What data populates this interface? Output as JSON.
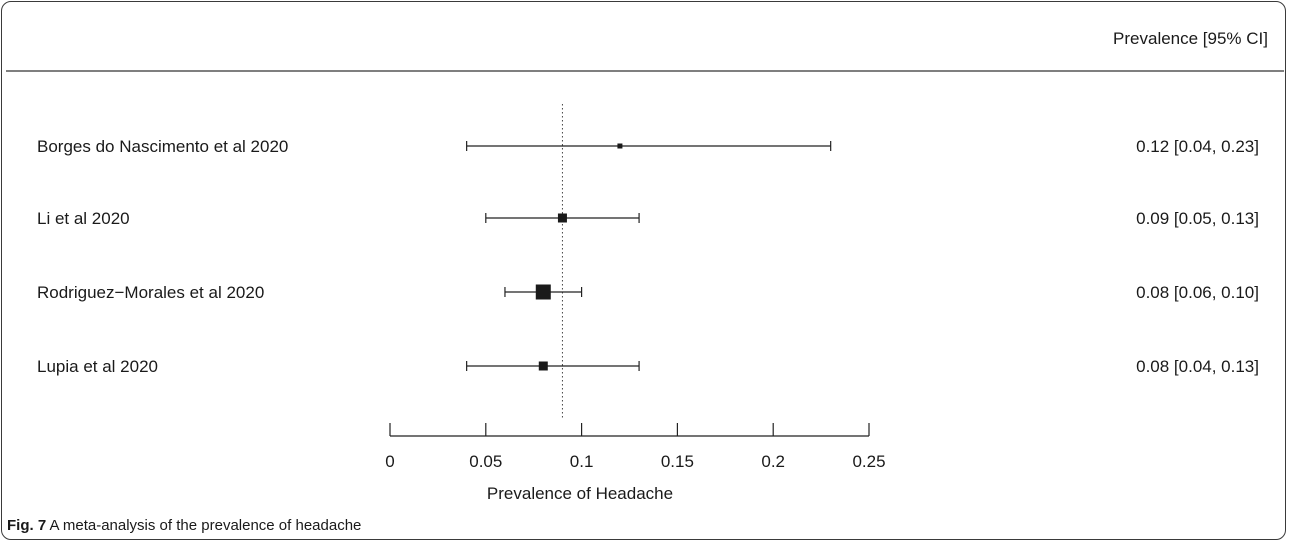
{
  "chart_data": {
    "type": "forest",
    "header_right": "Prevalence [95% CI]",
    "xlabel": "Prevalence of Headache",
    "xlim": [
      0,
      0.25
    ],
    "xticks": [
      "0",
      "0.05",
      "0.1",
      "0.15",
      "0.2",
      "0.25"
    ],
    "reference_line": 0.09,
    "studies": [
      {
        "name": "Borges do Nascimento et al 2020",
        "estimate": 0.12,
        "lower": 0.04,
        "upper": 0.23,
        "ci_text": "0.12 [0.04, 0.23]",
        "weight": "small"
      },
      {
        "name": "Li et al 2020",
        "estimate": 0.09,
        "lower": 0.05,
        "upper": 0.13,
        "ci_text": "0.09 [0.05, 0.13]",
        "weight": "medium"
      },
      {
        "name": "Rodriguez−Morales et al 2020",
        "estimate": 0.08,
        "lower": 0.06,
        "upper": 0.1,
        "ci_text": "0.08 [0.06, 0.10]",
        "weight": "large"
      },
      {
        "name": "Lupia et al 2020",
        "estimate": 0.08,
        "lower": 0.04,
        "upper": 0.13,
        "ci_text": "0.08 [0.04, 0.13]",
        "weight": "medium"
      }
    ]
  },
  "caption": {
    "label": "Fig. 7",
    "text": "A meta-analysis of the prevalence of headache"
  }
}
